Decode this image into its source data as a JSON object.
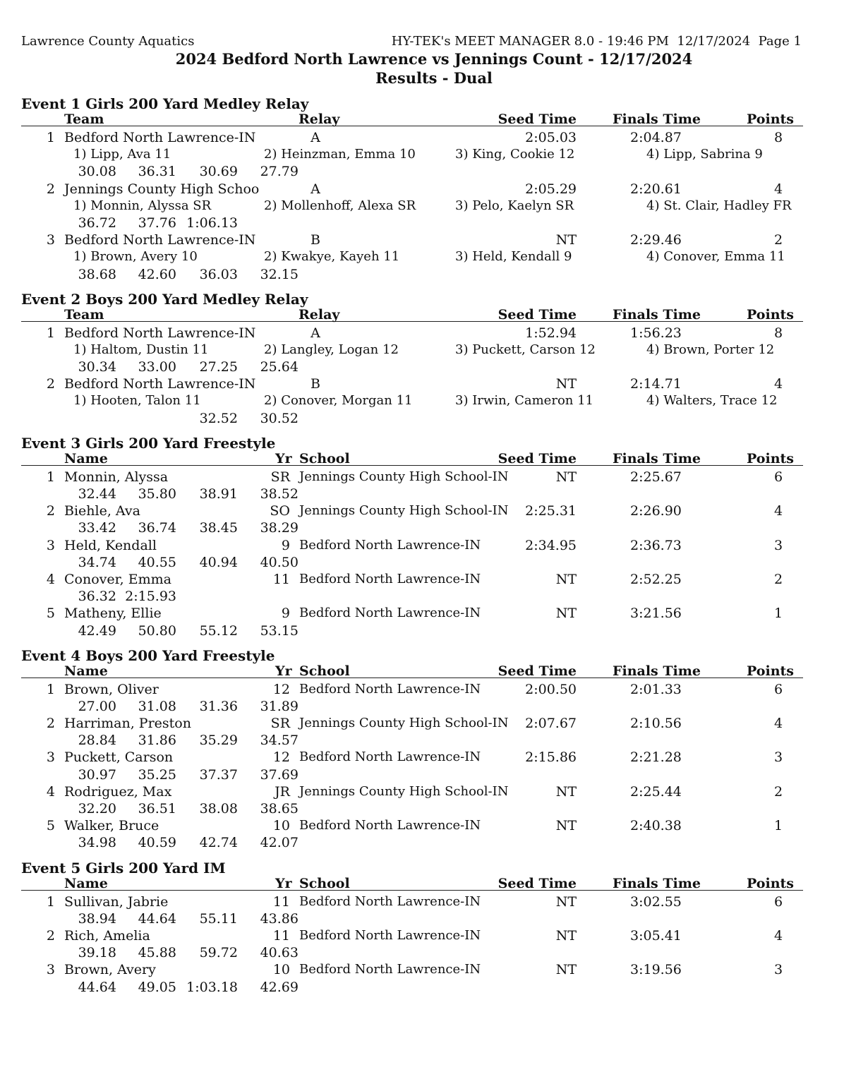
{
  "header": {
    "organization": "Lawrence County Aquatics",
    "software": "HY-TEK's MEET MANAGER 8.0 - 19:46 PM  12/17/2024  Page 1",
    "title": "2024 Bedford North Lawrence vs Jennings Count - 12/17/2024",
    "subtitle": "Results - Dual"
  },
  "relay_columns": [
    "Team",
    "Relay",
    "Seed Time",
    "Finals Time",
    "Points"
  ],
  "individual_columns": [
    "Name",
    "Yr",
    "School",
    "Seed Time",
    "Finals Time",
    "Points"
  ],
  "events": [
    {
      "title": "Event 1  Girls 200 Yard Medley Relay",
      "type": "relay",
      "results": [
        {
          "place": "1",
          "team": "Bedford North Lawrence-IN",
          "relay": "A",
          "seed": "2:05.03",
          "finals": "2:04.87",
          "points": "8",
          "swimmers": [
            "1) Lipp, Ava 11",
            "2) Heinzman, Emma 10",
            "3) King, Cookie 12",
            "4) Lipp, Sabrina 9"
          ],
          "splits": [
            "30.08",
            "36.31",
            "30.69",
            "27.79"
          ]
        },
        {
          "place": "2",
          "team": "Jennings County High Schoo",
          "relay": "A",
          "seed": "2:05.29",
          "finals": "2:20.61",
          "points": "4",
          "swimmers": [
            "1) Monnin, Alyssa SR",
            "2) Mollenhoff, Alexa SR",
            "3) Pelo, Kaelyn SR",
            "4) St. Clair, Hadley FR"
          ],
          "splits": [
            "36.72",
            "37.76",
            "1:06.13",
            ""
          ]
        },
        {
          "place": "3",
          "team": "Bedford North Lawrence-IN",
          "relay": "B",
          "seed": "NT",
          "finals": "2:29.46",
          "points": "2",
          "swimmers": [
            "1) Brown, Avery 10",
            "2) Kwakye, Kayeh 11",
            "3) Held, Kendall 9",
            "4) Conover, Emma 11"
          ],
          "splits": [
            "38.68",
            "42.60",
            "36.03",
            "32.15"
          ]
        }
      ]
    },
    {
      "title": "Event 2  Boys 200 Yard Medley Relay",
      "type": "relay",
      "results": [
        {
          "place": "1",
          "team": "Bedford North Lawrence-IN",
          "relay": "A",
          "seed": "1:52.94",
          "finals": "1:56.23",
          "points": "8",
          "swimmers": [
            "1) Haltom, Dustin 11",
            "2) Langley, Logan 12",
            "3) Puckett, Carson 12",
            "4) Brown, Porter 12"
          ],
          "splits": [
            "30.34",
            "33.00",
            "27.25",
            "25.64"
          ]
        },
        {
          "place": "2",
          "team": "Bedford North Lawrence-IN",
          "relay": "B",
          "seed": "NT",
          "finals": "2:14.71",
          "points": "4",
          "swimmers": [
            "1) Hooten, Talon 11",
            "2) Conover, Morgan 11",
            "3) Irwin, Cameron 11",
            "4) Walters, Trace 12"
          ],
          "splits": [
            "",
            "",
            "32.52",
            "30.52"
          ]
        }
      ]
    },
    {
      "title": "Event 3  Girls 200 Yard Freestyle",
      "type": "individual",
      "results": [
        {
          "place": "1",
          "name": "Monnin, Alyssa",
          "yr": "SR",
          "school": "Jennings County High School-IN",
          "seed": "NT",
          "finals": "2:25.67",
          "points": "6",
          "splits": [
            "32.44",
            "35.80",
            "38.91",
            "38.52"
          ]
        },
        {
          "place": "2",
          "name": "Biehle, Ava",
          "yr": "SO",
          "school": "Jennings County High School-IN",
          "seed": "2:25.31",
          "finals": "2:26.90",
          "points": "4",
          "splits": [
            "33.42",
            "36.74",
            "38.45",
            "38.29"
          ]
        },
        {
          "place": "3",
          "name": "Held, Kendall",
          "yr": "9",
          "school": "Bedford North Lawrence-IN",
          "seed": "2:34.95",
          "finals": "2:36.73",
          "points": "3",
          "splits": [
            "34.74",
            "40.55",
            "40.94",
            "40.50"
          ]
        },
        {
          "place": "4",
          "name": "Conover, Emma",
          "yr": "11",
          "school": "Bedford North Lawrence-IN",
          "seed": "NT",
          "finals": "2:52.25",
          "points": "2",
          "splits": [
            "36.32",
            "2:15.93",
            "",
            ""
          ]
        },
        {
          "place": "5",
          "name": "Matheny, Ellie",
          "yr": "9",
          "school": "Bedford North Lawrence-IN",
          "seed": "NT",
          "finals": "3:21.56",
          "points": "1",
          "splits": [
            "42.49",
            "50.80",
            "55.12",
            "53.15"
          ]
        }
      ]
    },
    {
      "title": "Event 4  Boys 200 Yard Freestyle",
      "type": "individual",
      "results": [
        {
          "place": "1",
          "name": "Brown, Oliver",
          "yr": "12",
          "school": "Bedford North Lawrence-IN",
          "seed": "2:00.50",
          "finals": "2:01.33",
          "points": "6",
          "splits": [
            "27.00",
            "31.08",
            "31.36",
            "31.89"
          ]
        },
        {
          "place": "2",
          "name": "Harriman, Preston",
          "yr": "SR",
          "school": "Jennings County High School-IN",
          "seed": "2:07.67",
          "finals": "2:10.56",
          "points": "4",
          "splits": [
            "28.84",
            "31.86",
            "35.29",
            "34.57"
          ]
        },
        {
          "place": "3",
          "name": "Puckett, Carson",
          "yr": "12",
          "school": "Bedford North Lawrence-IN",
          "seed": "2:15.86",
          "finals": "2:21.28",
          "points": "3",
          "splits": [
            "30.97",
            "35.25",
            "37.37",
            "37.69"
          ]
        },
        {
          "place": "4",
          "name": "Rodriguez, Max",
          "yr": "JR",
          "school": "Jennings County High School-IN",
          "seed": "NT",
          "finals": "2:25.44",
          "points": "2",
          "splits": [
            "32.20",
            "36.51",
            "38.08",
            "38.65"
          ]
        },
        {
          "place": "5",
          "name": "Walker, Bruce",
          "yr": "10",
          "school": "Bedford North Lawrence-IN",
          "seed": "NT",
          "finals": "2:40.38",
          "points": "1",
          "splits": [
            "34.98",
            "40.59",
            "42.74",
            "42.07"
          ]
        }
      ]
    },
    {
      "title": "Event 5  Girls 200 Yard IM",
      "type": "individual",
      "results": [
        {
          "place": "1",
          "name": "Sullivan, Jabrie",
          "yr": "11",
          "school": "Bedford North Lawrence-IN",
          "seed": "NT",
          "finals": "3:02.55",
          "points": "6",
          "splits": [
            "38.94",
            "44.64",
            "55.11",
            "43.86"
          ]
        },
        {
          "place": "2",
          "name": "Rich, Amelia",
          "yr": "11",
          "school": "Bedford North Lawrence-IN",
          "seed": "NT",
          "finals": "3:05.41",
          "points": "4",
          "splits": [
            "39.18",
            "45.88",
            "59.72",
            "40.63"
          ]
        },
        {
          "place": "3",
          "name": "Brown, Avery",
          "yr": "10",
          "school": "Bedford North Lawrence-IN",
          "seed": "NT",
          "finals": "3:19.56",
          "points": "3",
          "splits": [
            "44.64",
            "49.05",
            "1:03.18",
            "42.69"
          ]
        }
      ]
    }
  ]
}
